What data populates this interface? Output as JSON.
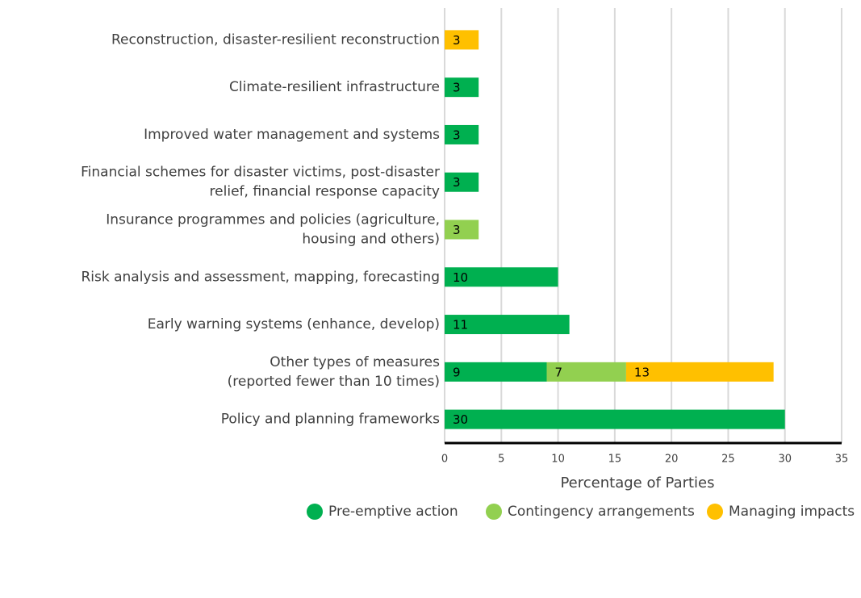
{
  "chart_data": {
    "type": "bar",
    "orientation": "horizontal",
    "stacked": true,
    "x_label": "Percentage of Parties",
    "categories": [
      [
        "Reconstruction, disaster-resilient reconstruction"
      ],
      [
        "Climate-resilient infrastructure"
      ],
      [
        "Improved water management and systems"
      ],
      [
        "Financial schemes for disaster victims, post-disaster",
        "relief, financial response capacity"
      ],
      [
        "Insurance programmes and policies (agriculture,",
        "housing and others)"
      ],
      [
        "Risk analysis and assessment, mapping, forecasting"
      ],
      [
        "Early warning systems (enhance, develop)"
      ],
      [
        "Other types of measures",
        "(reported fewer than 10 times)"
      ],
      [
        "Policy and planning frameworks"
      ]
    ],
    "series": [
      {
        "name": "Pre-emptive action",
        "color": "#00b050",
        "values": [
          null,
          3,
          3,
          3,
          null,
          10,
          11,
          9,
          30
        ]
      },
      {
        "name": "Contingency arrangements",
        "color": "#92d050",
        "values": [
          null,
          null,
          null,
          null,
          3,
          null,
          null,
          7,
          null
        ]
      },
      {
        "name": "Managing impacts",
        "color": "#ffc000",
        "values": [
          3,
          null,
          null,
          null,
          null,
          null,
          null,
          13,
          null
        ]
      }
    ],
    "xlim": [
      0,
      35
    ],
    "xticks": [
      0,
      5,
      10,
      15,
      20,
      25,
      30,
      35
    ],
    "grid": true
  }
}
